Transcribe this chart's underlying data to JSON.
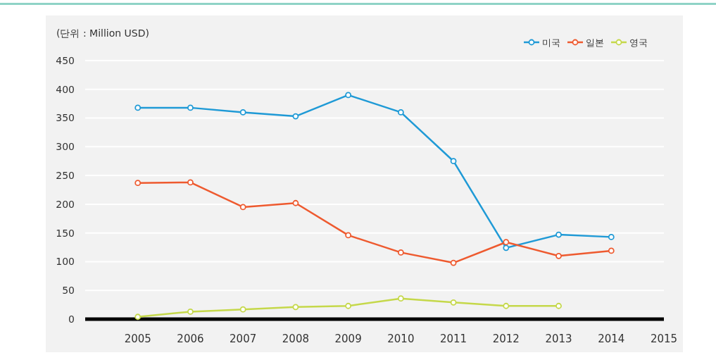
{
  "chart_data": {
    "type": "line",
    "ylabel": "(단위 : Million USD)",
    "x": [
      2005,
      2006,
      2007,
      2008,
      2009,
      2010,
      2011,
      2012,
      2013,
      2014
    ],
    "series": [
      {
        "name": "미국",
        "color": "#1f9ad6",
        "values": [
          368,
          368,
          360,
          353,
          390,
          360,
          275,
          124,
          147,
          143
        ]
      },
      {
        "name": "일본",
        "color": "#ee5a2f",
        "values": [
          237,
          238,
          195,
          202,
          146,
          116,
          98,
          134,
          110,
          119
        ]
      },
      {
        "name": "영국",
        "color": "#c5d84a",
        "values": [
          4,
          13,
          17,
          21,
          23,
          36,
          29,
          23,
          23,
          null
        ]
      }
    ],
    "xlim": [
      2004,
      2015
    ],
    "xticks": [
      2005,
      2006,
      2007,
      2008,
      2009,
      2010,
      2011,
      2012,
      2013,
      2014,
      2015
    ],
    "ylim": [
      0,
      450
    ],
    "yticks": [
      0,
      50,
      100,
      150,
      200,
      250,
      300,
      350,
      400,
      450
    ],
    "grid": "y",
    "legend": "top right",
    "marker": "circle",
    "line_style": "solid"
  }
}
